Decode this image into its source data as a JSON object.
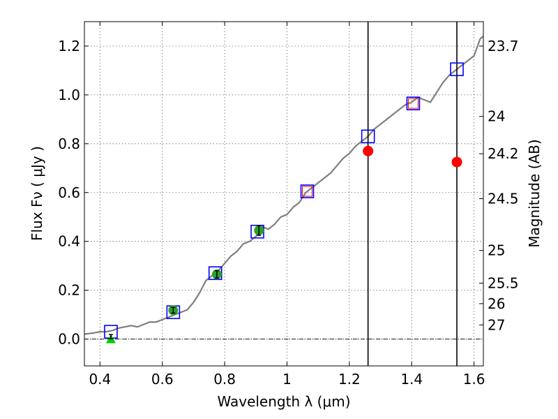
{
  "chart_data": {
    "type": "line",
    "xlabel": "Wavelength  λ (μm)",
    "ylabel": "Flux  Fν  ( μJy )",
    "y2label": "Magnitude (AB)",
    "xlim": [
      0.35,
      1.63
    ],
    "ylim": [
      -0.11,
      1.3
    ],
    "x_ticks": [
      0.4,
      0.6,
      0.8,
      1.0,
      1.2,
      1.4,
      1.6
    ],
    "x_tick_labels": [
      "0.4",
      "0.6",
      "0.8",
      "1",
      "1.2",
      "1.4",
      "1.6"
    ],
    "y_ticks": [
      0.0,
      0.2,
      0.4,
      0.6,
      0.8,
      1.0,
      1.2
    ],
    "y_tick_labels": [
      "0.0",
      "0.2",
      "0.4",
      "0.6",
      "0.8",
      "1.0",
      "1.2"
    ],
    "y2_ticks": [
      {
        "label": "23.7",
        "flux": 1.2
      },
      {
        "label": "24",
        "flux": 0.912
      },
      {
        "label": "24.2",
        "flux": 0.759
      },
      {
        "label": "24.5",
        "flux": 0.575
      },
      {
        "label": "25",
        "flux": 0.363
      },
      {
        "label": "25.5",
        "flux": 0.229
      },
      {
        "label": "26",
        "flux": 0.145
      },
      {
        "label": "27",
        "flux": 0.058
      }
    ],
    "grid": true,
    "vertical_lines": [
      1.26,
      1.545
    ],
    "series": [
      {
        "style": "line",
        "color": "#7f7f7f",
        "x": [
          0.35,
          0.38,
          0.4,
          0.42,
          0.44,
          0.46,
          0.48,
          0.5,
          0.52,
          0.54,
          0.56,
          0.58,
          0.6,
          0.62,
          0.64,
          0.66,
          0.68,
          0.7,
          0.72,
          0.74,
          0.76,
          0.78,
          0.8,
          0.82,
          0.84,
          0.86,
          0.88,
          0.9,
          0.92,
          0.94,
          0.96,
          0.98,
          1.0,
          1.02,
          1.04,
          1.06,
          1.08,
          1.1,
          1.12,
          1.14,
          1.16,
          1.18,
          1.2,
          1.22,
          1.24,
          1.26,
          1.28,
          1.3,
          1.32,
          1.34,
          1.36,
          1.38,
          1.4,
          1.42,
          1.44,
          1.46,
          1.48,
          1.5,
          1.52,
          1.54,
          1.56,
          1.58,
          1.6,
          1.62,
          1.63
        ],
        "y": [
          0.02,
          0.025,
          0.03,
          0.03,
          0.035,
          0.045,
          0.05,
          0.055,
          0.05,
          0.06,
          0.07,
          0.07,
          0.08,
          0.09,
          0.1,
          0.11,
          0.12,
          0.15,
          0.19,
          0.24,
          0.26,
          0.28,
          0.31,
          0.34,
          0.36,
          0.39,
          0.4,
          0.42,
          0.46,
          0.45,
          0.47,
          0.5,
          0.51,
          0.54,
          0.56,
          0.6,
          0.62,
          0.64,
          0.66,
          0.68,
          0.71,
          0.74,
          0.76,
          0.79,
          0.81,
          0.83,
          0.86,
          0.88,
          0.9,
          0.92,
          0.94,
          0.96,
          0.97,
          0.99,
          0.98,
          0.97,
          1.01,
          1.05,
          1.08,
          1.1,
          1.12,
          1.14,
          1.16,
          1.23,
          1.24
        ]
      },
      {
        "style": "open-square",
        "color": "#0000ff",
        "x": [
          0.435,
          0.635,
          0.77,
          0.905,
          1.065,
          1.26,
          1.405,
          1.545
        ],
        "y": [
          0.03,
          0.11,
          0.27,
          0.44,
          0.605,
          0.83,
          0.965,
          1.105
        ]
      },
      {
        "style": "filled-circle",
        "color": "#2ca02c",
        "x": [
          0.635,
          0.775,
          0.91
        ],
        "y": [
          0.118,
          0.265,
          0.445
        ],
        "yerr": [
          0.01,
          0.015,
          0.02
        ]
      },
      {
        "style": "triangle",
        "color": "#00cc00",
        "x": [
          0.435
        ],
        "y": [
          0.0
        ],
        "yerr": [
          0.01
        ]
      },
      {
        "style": "filled-circle",
        "color": "#ff0000",
        "x": [
          1.26,
          1.545
        ],
        "y": [
          0.77,
          0.725
        ]
      },
      {
        "style": "small-open-square",
        "color": "#ff0000",
        "x": [
          1.065,
          1.405
        ],
        "y": [
          0.605,
          0.965
        ]
      }
    ]
  }
}
